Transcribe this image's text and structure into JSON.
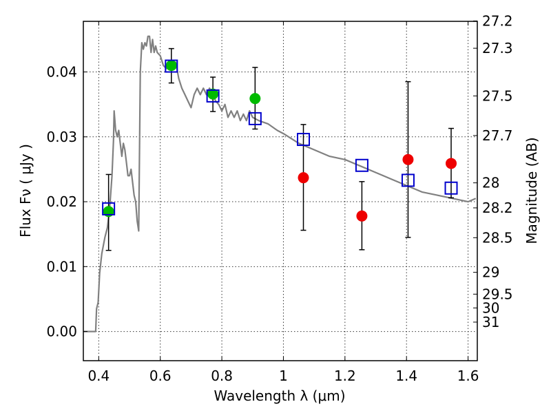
{
  "chart_data": {
    "type": "scatter",
    "xlabel": "Wavelength  λ (μm)",
    "ylabel": "Flux  Fν  ( μJy )",
    "ylabel_right": "Magnitude (AB)",
    "xlim": [
      0.35,
      1.63
    ],
    "ylim": [
      -0.0045,
      0.0478
    ],
    "x_ticks": [
      "0.4",
      "0.6",
      "0.8",
      "1",
      "1.2",
      "1.4",
      "1.6"
    ],
    "x_tick_values": [
      0.4,
      0.6,
      0.8,
      1.0,
      1.2,
      1.4,
      1.6
    ],
    "y_ticks": [
      "0.00",
      "0.01",
      "0.02",
      "0.03",
      "0.04"
    ],
    "y_tick_values": [
      0.0,
      0.01,
      0.02,
      0.03,
      0.04
    ],
    "mag_ticks": [
      "27.2",
      "27.3",
      "27.5",
      "27.7",
      "28",
      "28.2",
      "28.5",
      "29",
      "29.5",
      "30",
      "31"
    ],
    "mag_tick_values": [
      27.2,
      27.3,
      27.5,
      27.7,
      28.0,
      28.2,
      28.5,
      29.0,
      29.5,
      30.0,
      31.0
    ],
    "grid": true,
    "colors": {
      "sed": "#808080",
      "detected": "#00bb00",
      "upper": "#ee0000",
      "model": "#0000cc",
      "errorbar": "#000000"
    },
    "sed_curve": {
      "x": [
        0.35,
        0.39,
        0.393,
        0.398,
        0.403,
        0.41,
        0.42,
        0.428,
        0.433,
        0.437,
        0.443,
        0.448,
        0.45,
        0.455,
        0.46,
        0.465,
        0.47,
        0.475,
        0.48,
        0.485,
        0.49,
        0.495,
        0.5,
        0.505,
        0.51,
        0.515,
        0.52,
        0.525,
        0.53,
        0.535,
        0.54,
        0.545,
        0.55,
        0.555,
        0.56,
        0.565,
        0.57,
        0.575,
        0.58,
        0.585,
        0.59,
        0.6,
        0.61,
        0.62,
        0.63,
        0.64,
        0.65,
        0.66,
        0.67,
        0.68,
        0.69,
        0.7,
        0.71,
        0.72,
        0.73,
        0.74,
        0.75,
        0.76,
        0.77,
        0.78,
        0.79,
        0.8,
        0.81,
        0.82,
        0.83,
        0.84,
        0.85,
        0.86,
        0.87,
        0.88,
        0.89,
        0.9,
        0.92,
        0.95,
        0.98,
        1.0,
        1.05,
        1.1,
        1.15,
        1.2,
        1.25,
        1.3,
        1.35,
        1.4,
        1.45,
        1.5,
        1.55,
        1.6,
        1.625
      ],
      "y": [
        0.0,
        0.0,
        0.0035,
        0.0045,
        0.009,
        0.012,
        0.0145,
        0.016,
        0.018,
        0.02,
        0.024,
        0.0295,
        0.034,
        0.031,
        0.03,
        0.031,
        0.029,
        0.027,
        0.029,
        0.028,
        0.026,
        0.024,
        0.024,
        0.025,
        0.023,
        0.021,
        0.02,
        0.017,
        0.0155,
        0.04,
        0.0445,
        0.0435,
        0.0445,
        0.044,
        0.0455,
        0.0455,
        0.043,
        0.045,
        0.043,
        0.044,
        0.043,
        0.0425,
        0.041,
        0.0405,
        0.0415,
        0.0405,
        0.0415,
        0.039,
        0.0375,
        0.0365,
        0.0355,
        0.0345,
        0.0365,
        0.0375,
        0.0365,
        0.0375,
        0.0365,
        0.0375,
        0.0365,
        0.0355,
        0.035,
        0.034,
        0.035,
        0.033,
        0.034,
        0.033,
        0.034,
        0.0325,
        0.0335,
        0.0325,
        0.034,
        0.033,
        0.0325,
        0.032,
        0.031,
        0.0305,
        0.029,
        0.028,
        0.027,
        0.0265,
        0.0255,
        0.0245,
        0.0235,
        0.0225,
        0.0215,
        0.021,
        0.0205,
        0.02,
        0.0205
      ]
    },
    "model_points": {
      "x": [
        0.432,
        0.636,
        0.771,
        0.908,
        1.065,
        1.255,
        1.405,
        1.545
      ],
      "y": [
        0.0189,
        0.0409,
        0.0363,
        0.0328,
        0.0296,
        0.0256,
        0.0233,
        0.0221
      ]
    },
    "detected_points": {
      "x": [
        0.432,
        0.636,
        0.771,
        0.908
      ],
      "y": [
        0.0185,
        0.041,
        0.0366,
        0.0359
      ],
      "yerr_low": [
        0.0125,
        0.0383,
        0.0339,
        0.0312
      ],
      "yerr_high": [
        0.0242,
        0.0436,
        0.0392,
        0.0407
      ]
    },
    "upper_points": {
      "x": [
        1.065,
        1.255,
        1.405,
        1.545
      ],
      "y": [
        0.0237,
        0.0178,
        0.0265,
        0.0259
      ],
      "yerr_low": [
        0.0156,
        0.0126,
        0.0145,
        0.0206
      ],
      "yerr_high": [
        0.0319,
        0.0231,
        0.0385,
        0.0313
      ]
    }
  }
}
